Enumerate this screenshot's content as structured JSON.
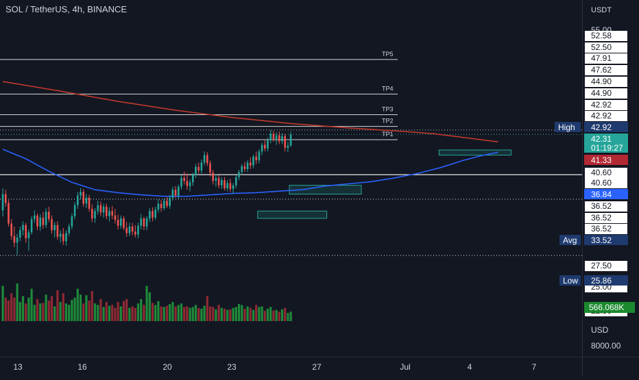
{
  "header": {
    "title": "SOL / TetherUS, 4h, BINANCE"
  },
  "price_axis": {
    "currency_label": "USDT",
    "top_cut_label": "55.00",
    "labels": [
      "52.58",
      "52.50",
      "47.91",
      "47.62",
      "44.90",
      "44.90",
      "42.92",
      "42.92",
      "40.60",
      "40.60",
      "36.52",
      "36.52",
      "36.52",
      "27.50",
      "25.00",
      "22.50"
    ],
    "highlight_labels": [
      {
        "tag": "High",
        "value": "42.92",
        "color": "#1e3a6e"
      },
      {
        "tag": "",
        "value": "42.31",
        "sub": "01:19:27",
        "color": "#26a69a"
      },
      {
        "tag": "",
        "value": "41.33",
        "color": "#b22833"
      },
      {
        "tag": "",
        "value": "36.84",
        "color": "#2962ff"
      },
      {
        "tag": "Avg",
        "value": "33.52",
        "color": "#1e3a6e"
      },
      {
        "tag": "Low",
        "value": "25.86",
        "color": "#1e3a6e"
      }
    ],
    "volume_label": "566.068K",
    "volume_label_color": "#1b8a2f"
  },
  "volume_axis": {
    "unit_label": "USD",
    "tick_label": "8000.00"
  },
  "time_axis": {
    "labels": [
      "13",
      "16",
      "20",
      "23",
      "27",
      "Jul",
      "4",
      "7"
    ]
  },
  "chart_data": {
    "type": "candlestick",
    "symbol": "SOL / TetherUS",
    "interval": "4h",
    "exchange": "BINANCE",
    "ylim": [
      21.5,
      55.0
    ],
    "take_profit_levels": [
      {
        "name": "TP5",
        "value": 52.5
      },
      {
        "name": "TP4",
        "value": 47.8
      },
      {
        "name": "TP3",
        "value": 45.0
      },
      {
        "name": "TP2",
        "value": 43.4
      },
      {
        "name": "TP1",
        "value": 41.6
      }
    ],
    "horizontal_levels": [
      {
        "value": 36.84,
        "style": "solid"
      },
      {
        "value": 33.52,
        "style": "dotted"
      },
      {
        "value": 25.86,
        "style": "dotted"
      }
    ],
    "current_price": 42.31,
    "high": 42.92,
    "low": 25.86,
    "average": 33.52,
    "moving_averages": [
      {
        "color": "#c0392b",
        "points": [
          [
            0,
            49.5
          ],
          [
            20,
            48.2
          ],
          [
            40,
            46.8
          ],
          [
            60,
            45.6
          ],
          [
            80,
            44.6
          ],
          [
            100,
            43.8
          ],
          [
            120,
            43.2
          ],
          [
            140,
            42.7
          ],
          [
            150,
            42.4
          ],
          [
            172,
            41.3
          ]
        ]
      },
      {
        "color": "#2962ff",
        "points": [
          [
            0,
            40.3
          ],
          [
            8,
            39.0
          ],
          [
            16,
            37.3
          ],
          [
            24,
            35.8
          ],
          [
            32,
            34.8
          ],
          [
            40,
            34.4
          ],
          [
            48,
            34.1
          ],
          [
            56,
            33.9
          ],
          [
            64,
            33.9
          ],
          [
            72,
            34.1
          ],
          [
            80,
            34.3
          ],
          [
            88,
            34.4
          ],
          [
            96,
            34.6
          ],
          [
            104,
            34.8
          ],
          [
            112,
            35.3
          ],
          [
            120,
            35.6
          ],
          [
            128,
            35.9
          ],
          [
            136,
            36.4
          ],
          [
            144,
            37.0
          ],
          [
            152,
            37.8
          ],
          [
            160,
            38.8
          ],
          [
            166,
            39.4
          ],
          [
            172,
            39.9
          ]
        ]
      }
    ],
    "zones": [
      {
        "x0": 100,
        "x1": 124,
        "top": 35.4,
        "bottom": 34.2
      },
      {
        "x0": 89,
        "x1": 112,
        "top": 31.9,
        "bottom": 30.9
      },
      {
        "x0": 152,
        "x1": 176,
        "top": 40.2,
        "bottom": 39.5
      }
    ],
    "candles": [
      {
        "o": 32.0,
        "h": 35.0,
        "l": 31.2,
        "c": 34.2
      },
      {
        "o": 34.2,
        "h": 34.8,
        "l": 32.5,
        "c": 33.0
      },
      {
        "o": 33.0,
        "h": 33.4,
        "l": 29.8,
        "c": 30.2
      },
      {
        "o": 30.2,
        "h": 30.8,
        "l": 28.0,
        "c": 28.5
      },
      {
        "o": 28.5,
        "h": 29.8,
        "l": 27.0,
        "c": 27.6
      },
      {
        "o": 27.6,
        "h": 28.8,
        "l": 25.9,
        "c": 28.3
      },
      {
        "o": 28.3,
        "h": 29.8,
        "l": 27.8,
        "c": 29.3
      },
      {
        "o": 29.3,
        "h": 30.5,
        "l": 28.6,
        "c": 30.0
      },
      {
        "o": 30.0,
        "h": 30.3,
        "l": 27.6,
        "c": 28.2
      },
      {
        "o": 28.2,
        "h": 29.4,
        "l": 26.5,
        "c": 29.0
      },
      {
        "o": 29.0,
        "h": 31.2,
        "l": 28.7,
        "c": 30.8
      },
      {
        "o": 30.8,
        "h": 32.0,
        "l": 30.3,
        "c": 31.3
      },
      {
        "o": 31.3,
        "h": 31.6,
        "l": 29.3,
        "c": 29.8
      },
      {
        "o": 29.8,
        "h": 31.5,
        "l": 29.2,
        "c": 31.0
      },
      {
        "o": 31.0,
        "h": 31.8,
        "l": 29.5,
        "c": 30.0
      },
      {
        "o": 30.0,
        "h": 32.3,
        "l": 29.6,
        "c": 31.8
      },
      {
        "o": 31.8,
        "h": 32.5,
        "l": 30.4,
        "c": 30.8
      },
      {
        "o": 30.8,
        "h": 31.3,
        "l": 28.8,
        "c": 29.3
      },
      {
        "o": 29.3,
        "h": 30.4,
        "l": 28.3,
        "c": 30.0
      },
      {
        "o": 30.0,
        "h": 30.5,
        "l": 28.0,
        "c": 28.4
      },
      {
        "o": 28.4,
        "h": 29.3,
        "l": 27.6,
        "c": 28.8
      },
      {
        "o": 28.8,
        "h": 29.6,
        "l": 27.3,
        "c": 27.8
      },
      {
        "o": 27.8,
        "h": 29.3,
        "l": 27.2,
        "c": 28.9
      },
      {
        "o": 28.9,
        "h": 30.2,
        "l": 28.5,
        "c": 29.8
      },
      {
        "o": 29.8,
        "h": 31.6,
        "l": 29.4,
        "c": 31.2
      },
      {
        "o": 31.2,
        "h": 33.1,
        "l": 30.8,
        "c": 32.7
      },
      {
        "o": 32.7,
        "h": 34.5,
        "l": 32.2,
        "c": 34.0
      },
      {
        "o": 34.0,
        "h": 35.0,
        "l": 33.5,
        "c": 34.5
      },
      {
        "o": 34.5,
        "h": 34.9,
        "l": 32.5,
        "c": 32.9
      },
      {
        "o": 32.9,
        "h": 34.2,
        "l": 32.3,
        "c": 33.7
      },
      {
        "o": 33.7,
        "h": 34.1,
        "l": 31.8,
        "c": 32.2
      },
      {
        "o": 32.2,
        "h": 32.8,
        "l": 30.4,
        "c": 30.9
      },
      {
        "o": 30.9,
        "h": 32.3,
        "l": 30.3,
        "c": 31.9
      },
      {
        "o": 31.9,
        "h": 33.3,
        "l": 31.4,
        "c": 32.7
      },
      {
        "o": 32.7,
        "h": 33.2,
        "l": 31.2,
        "c": 31.7
      },
      {
        "o": 31.7,
        "h": 32.9,
        "l": 31.0,
        "c": 32.5
      },
      {
        "o": 32.5,
        "h": 32.9,
        "l": 30.8,
        "c": 31.2
      },
      {
        "o": 31.2,
        "h": 32.4,
        "l": 30.5,
        "c": 31.9
      },
      {
        "o": 31.9,
        "h": 32.6,
        "l": 30.8,
        "c": 31.3
      },
      {
        "o": 31.3,
        "h": 32.2,
        "l": 30.2,
        "c": 30.7
      },
      {
        "o": 30.7,
        "h": 31.4,
        "l": 29.4,
        "c": 29.9
      },
      {
        "o": 29.9,
        "h": 31.3,
        "l": 29.5,
        "c": 30.9
      },
      {
        "o": 30.9,
        "h": 31.2,
        "l": 29.3,
        "c": 29.6
      },
      {
        "o": 29.6,
        "h": 30.4,
        "l": 28.4,
        "c": 28.9
      },
      {
        "o": 28.9,
        "h": 30.3,
        "l": 28.5,
        "c": 29.8
      },
      {
        "o": 29.8,
        "h": 30.3,
        "l": 28.6,
        "c": 29.1
      },
      {
        "o": 29.1,
        "h": 30.0,
        "l": 28.3,
        "c": 28.7
      },
      {
        "o": 28.7,
        "h": 30.3,
        "l": 28.2,
        "c": 29.9
      },
      {
        "o": 29.9,
        "h": 31.5,
        "l": 29.4,
        "c": 30.9
      },
      {
        "o": 30.9,
        "h": 31.1,
        "l": 29.3,
        "c": 29.8
      },
      {
        "o": 29.8,
        "h": 31.2,
        "l": 29.3,
        "c": 30.9
      },
      {
        "o": 30.9,
        "h": 32.3,
        "l": 30.4,
        "c": 31.9
      },
      {
        "o": 31.9,
        "h": 32.4,
        "l": 30.5,
        "c": 31.0
      },
      {
        "o": 31.0,
        "h": 32.5,
        "l": 30.7,
        "c": 32.1
      },
      {
        "o": 32.1,
        "h": 33.5,
        "l": 31.7,
        "c": 32.9
      },
      {
        "o": 32.9,
        "h": 33.4,
        "l": 31.8,
        "c": 32.3
      },
      {
        "o": 32.3,
        "h": 33.6,
        "l": 32.0,
        "c": 33.3
      },
      {
        "o": 33.3,
        "h": 33.8,
        "l": 32.3,
        "c": 32.6
      },
      {
        "o": 32.6,
        "h": 34.1,
        "l": 32.2,
        "c": 33.7
      },
      {
        "o": 33.7,
        "h": 35.2,
        "l": 33.3,
        "c": 34.8
      },
      {
        "o": 34.8,
        "h": 35.3,
        "l": 33.7,
        "c": 34.0
      },
      {
        "o": 34.0,
        "h": 35.5,
        "l": 33.6,
        "c": 35.2
      },
      {
        "o": 35.2,
        "h": 36.8,
        "l": 34.8,
        "c": 36.4
      },
      {
        "o": 36.4,
        "h": 37.3,
        "l": 35.5,
        "c": 36.0
      },
      {
        "o": 36.0,
        "h": 37.0,
        "l": 34.8,
        "c": 35.3
      },
      {
        "o": 35.3,
        "h": 36.2,
        "l": 34.6,
        "c": 35.8
      },
      {
        "o": 35.8,
        "h": 37.1,
        "l": 35.3,
        "c": 36.8
      },
      {
        "o": 36.8,
        "h": 38.3,
        "l": 36.4,
        "c": 37.9
      },
      {
        "o": 37.9,
        "h": 38.5,
        "l": 37.0,
        "c": 37.4
      },
      {
        "o": 37.4,
        "h": 38.9,
        "l": 37.0,
        "c": 38.5
      },
      {
        "o": 38.5,
        "h": 40.0,
        "l": 38.1,
        "c": 39.5
      },
      {
        "o": 39.5,
        "h": 39.9,
        "l": 38.0,
        "c": 38.4
      },
      {
        "o": 38.4,
        "h": 38.8,
        "l": 36.6,
        "c": 37.1
      },
      {
        "o": 37.1,
        "h": 37.5,
        "l": 35.5,
        "c": 36.0
      },
      {
        "o": 36.0,
        "h": 36.9,
        "l": 35.2,
        "c": 36.4
      },
      {
        "o": 36.4,
        "h": 36.8,
        "l": 35.0,
        "c": 35.4
      },
      {
        "o": 35.4,
        "h": 36.5,
        "l": 34.9,
        "c": 36.1
      },
      {
        "o": 36.1,
        "h": 36.5,
        "l": 34.7,
        "c": 35.0
      },
      {
        "o": 35.0,
        "h": 36.1,
        "l": 34.6,
        "c": 35.7
      },
      {
        "o": 35.7,
        "h": 36.3,
        "l": 34.5,
        "c": 34.9
      },
      {
        "o": 34.9,
        "h": 35.7,
        "l": 34.3,
        "c": 35.4
      },
      {
        "o": 35.4,
        "h": 36.8,
        "l": 35.0,
        "c": 36.5
      },
      {
        "o": 36.5,
        "h": 37.5,
        "l": 36.1,
        "c": 37.2
      },
      {
        "o": 37.2,
        "h": 38.3,
        "l": 36.8,
        "c": 38.0
      },
      {
        "o": 38.0,
        "h": 38.6,
        "l": 37.2,
        "c": 37.6
      },
      {
        "o": 37.6,
        "h": 38.8,
        "l": 37.2,
        "c": 38.5
      },
      {
        "o": 38.5,
        "h": 39.2,
        "l": 37.6,
        "c": 38.1
      },
      {
        "o": 38.1,
        "h": 39.6,
        "l": 37.7,
        "c": 39.3
      },
      {
        "o": 39.3,
        "h": 40.0,
        "l": 38.3,
        "c": 38.8
      },
      {
        "o": 38.8,
        "h": 40.3,
        "l": 38.4,
        "c": 40.0
      },
      {
        "o": 40.0,
        "h": 41.2,
        "l": 39.5,
        "c": 40.9
      },
      {
        "o": 40.9,
        "h": 41.5,
        "l": 40.0,
        "c": 40.4
      },
      {
        "o": 40.4,
        "h": 41.9,
        "l": 40.0,
        "c": 41.5
      },
      {
        "o": 41.5,
        "h": 42.9,
        "l": 41.1,
        "c": 42.4
      },
      {
        "o": 42.4,
        "h": 42.8,
        "l": 41.3,
        "c": 41.7
      },
      {
        "o": 41.7,
        "h": 42.6,
        "l": 40.9,
        "c": 42.2
      },
      {
        "o": 42.2,
        "h": 42.7,
        "l": 41.0,
        "c": 41.4
      },
      {
        "o": 41.4,
        "h": 42.5,
        "l": 41.0,
        "c": 42.1
      },
      {
        "o": 42.1,
        "h": 42.4,
        "l": 40.0,
        "c": 40.5
      },
      {
        "o": 40.5,
        "h": 41.3,
        "l": 39.9,
        "c": 40.8
      },
      {
        "o": 40.8,
        "h": 42.7,
        "l": 40.6,
        "c": 42.31
      }
    ],
    "volume": [
      {
        "v": 12.0,
        "up": true
      },
      {
        "v": 8.0,
        "up": false
      },
      {
        "v": 7.0,
        "up": false
      },
      {
        "v": 9.5,
        "up": false
      },
      {
        "v": 8.0,
        "up": false
      },
      {
        "v": 12.8,
        "up": true
      },
      {
        "v": 6.5,
        "up": true
      },
      {
        "v": 8.5,
        "up": true
      },
      {
        "v": 6.0,
        "up": false
      },
      {
        "v": 8.0,
        "up": true
      },
      {
        "v": 11.0,
        "up": true
      },
      {
        "v": 5.5,
        "up": true
      },
      {
        "v": 7.5,
        "up": false
      },
      {
        "v": 6.0,
        "up": true
      },
      {
        "v": 6.2,
        "up": false
      },
      {
        "v": 9.0,
        "up": true
      },
      {
        "v": 7.0,
        "up": false
      },
      {
        "v": 8.5,
        "up": false
      },
      {
        "v": 5.0,
        "up": true
      },
      {
        "v": 10.5,
        "up": false
      },
      {
        "v": 6.5,
        "up": true
      },
      {
        "v": 9.5,
        "up": false
      },
      {
        "v": 6.0,
        "up": true
      },
      {
        "v": 5.5,
        "up": true
      },
      {
        "v": 7.2,
        "up": true
      },
      {
        "v": 8.0,
        "up": true
      },
      {
        "v": 11.0,
        "up": true
      },
      {
        "v": 9.0,
        "up": true
      },
      {
        "v": 6.0,
        "up": false
      },
      {
        "v": 8.8,
        "up": true
      },
      {
        "v": 7.0,
        "up": false
      },
      {
        "v": 10.2,
        "up": false
      },
      {
        "v": 6.0,
        "up": true
      },
      {
        "v": 5.5,
        "up": true
      },
      {
        "v": 7.5,
        "up": false
      },
      {
        "v": 4.8,
        "up": true
      },
      {
        "v": 6.5,
        "up": false
      },
      {
        "v": 5.2,
        "up": true
      },
      {
        "v": 5.5,
        "up": false
      },
      {
        "v": 4.5,
        "up": false
      },
      {
        "v": 6.5,
        "up": false
      },
      {
        "v": 5.0,
        "up": true
      },
      {
        "v": 6.8,
        "up": false
      },
      {
        "v": 7.5,
        "up": false
      },
      {
        "v": 4.5,
        "up": true
      },
      {
        "v": 5.0,
        "up": false
      },
      {
        "v": 4.5,
        "up": false
      },
      {
        "v": 6.0,
        "up": true
      },
      {
        "v": 7.5,
        "up": true
      },
      {
        "v": 5.5,
        "up": false
      },
      {
        "v": 12.0,
        "up": true
      },
      {
        "v": 9.8,
        "up": true
      },
      {
        "v": 6.2,
        "up": false
      },
      {
        "v": 5.5,
        "up": true
      },
      {
        "v": 6.8,
        "up": true
      },
      {
        "v": 5.0,
        "up": false
      },
      {
        "v": 4.8,
        "up": true
      },
      {
        "v": 5.2,
        "up": false
      },
      {
        "v": 5.8,
        "up": true
      },
      {
        "v": 6.5,
        "up": true
      },
      {
        "v": 5.0,
        "up": false
      },
      {
        "v": 5.5,
        "up": true
      },
      {
        "v": 6.0,
        "up": true
      },
      {
        "v": 4.8,
        "up": false
      },
      {
        "v": 5.0,
        "up": false
      },
      {
        "v": 4.5,
        "up": true
      },
      {
        "v": 4.8,
        "up": true
      },
      {
        "v": 5.5,
        "up": true
      },
      {
        "v": 4.5,
        "up": false
      },
      {
        "v": 4.2,
        "up": true
      },
      {
        "v": 5.2,
        "up": true
      },
      {
        "v": 8.5,
        "up": false
      },
      {
        "v": 5.0,
        "up": false
      },
      {
        "v": 4.8,
        "up": false
      },
      {
        "v": 4.0,
        "up": true
      },
      {
        "v": 5.5,
        "up": false
      },
      {
        "v": 4.5,
        "up": true
      },
      {
        "v": 4.2,
        "up": false
      },
      {
        "v": 3.8,
        "up": true
      },
      {
        "v": 4.0,
        "up": false
      },
      {
        "v": 4.5,
        "up": true
      },
      {
        "v": 4.8,
        "up": true
      },
      {
        "v": 5.8,
        "up": true
      },
      {
        "v": 5.5,
        "up": true
      },
      {
        "v": 4.2,
        "up": false
      },
      {
        "v": 5.0,
        "up": true
      },
      {
        "v": 4.5,
        "up": false
      },
      {
        "v": 3.8,
        "up": true
      },
      {
        "v": 5.5,
        "up": false
      },
      {
        "v": 4.8,
        "up": true
      },
      {
        "v": 5.0,
        "up": true
      },
      {
        "v": 3.5,
        "up": false
      },
      {
        "v": 4.2,
        "up": true
      },
      {
        "v": 4.8,
        "up": true
      },
      {
        "v": 3.6,
        "up": false
      },
      {
        "v": 3.8,
        "up": true
      },
      {
        "v": 3.2,
        "up": false
      },
      {
        "v": 4.0,
        "up": true
      },
      {
        "v": 4.5,
        "up": false
      },
      {
        "v": 2.8,
        "up": true
      },
      {
        "v": 3.2,
        "up": true
      }
    ]
  }
}
